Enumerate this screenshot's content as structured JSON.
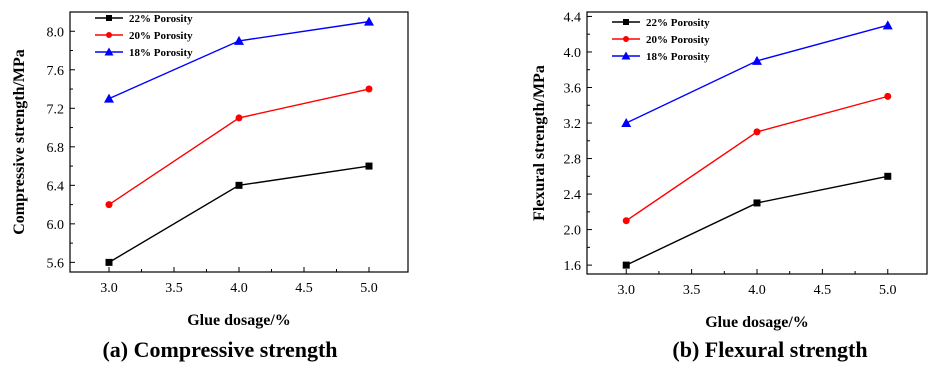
{
  "chart_data": [
    {
      "type": "line",
      "caption": "(a) Compressive strength",
      "xlabel": "Glue dosage/%",
      "ylabel": "Compressive strength/MPa",
      "x": [
        3.0,
        4.0,
        5.0
      ],
      "xlim": [
        2.7,
        5.3
      ],
      "ylim": [
        5.5,
        8.2
      ],
      "xticks": [
        3.0,
        3.5,
        4.0,
        4.5,
        5.0
      ],
      "xtick_labels": [
        "3.0",
        "3.5",
        "4.0",
        "4.5",
        "5.0"
      ],
      "yticks": [
        5.6,
        6.0,
        6.4,
        6.8,
        7.2,
        7.6,
        8.0
      ],
      "ytick_labels": [
        "5.6",
        "6.0",
        "6.4",
        "6.8",
        "7.2",
        "7.6",
        "8.0"
      ],
      "legend_position": "top-left",
      "series": [
        {
          "name": "22% Porosity",
          "color": "#000000",
          "marker": "square",
          "values": [
            5.6,
            6.4,
            6.6
          ]
        },
        {
          "name": "20% Porosity",
          "color": "#ff0000",
          "marker": "circle",
          "values": [
            6.2,
            7.1,
            7.4
          ]
        },
        {
          "name": "18% Porosity",
          "color": "#0000ff",
          "marker": "triangle",
          "values": [
            7.3,
            7.9,
            8.1
          ]
        }
      ]
    },
    {
      "type": "line",
      "caption": "(b) Flexural strength",
      "xlabel": "Glue dosage/%",
      "ylabel": "Flexural strength/MPa",
      "x": [
        3.0,
        4.0,
        5.0
      ],
      "xlim": [
        2.7,
        5.3
      ],
      "ylim": [
        1.5,
        4.45
      ],
      "xticks": [
        3.0,
        3.5,
        4.0,
        4.5,
        5.0
      ],
      "xtick_labels": [
        "3.0",
        "3.5",
        "4.0",
        "4.5",
        "5.0"
      ],
      "yticks": [
        1.6,
        2.0,
        2.4,
        2.8,
        3.2,
        3.6,
        4.0,
        4.4
      ],
      "ytick_labels": [
        "1.6",
        "2.0",
        "2.4",
        "2.8",
        "3.2",
        "3.6",
        "4.0",
        "4.4"
      ],
      "legend_position": "top-left",
      "series": [
        {
          "name": "22% Porosity",
          "color": "#000000",
          "marker": "square",
          "values": [
            1.6,
            2.3,
            2.6
          ]
        },
        {
          "name": "20% Porosity",
          "color": "#ff0000",
          "marker": "circle",
          "values": [
            2.1,
            3.1,
            3.5
          ]
        },
        {
          "name": "18% Porosity",
          "color": "#0000ff",
          "marker": "triangle",
          "values": [
            3.2,
            3.9,
            4.3
          ]
        }
      ]
    }
  ]
}
